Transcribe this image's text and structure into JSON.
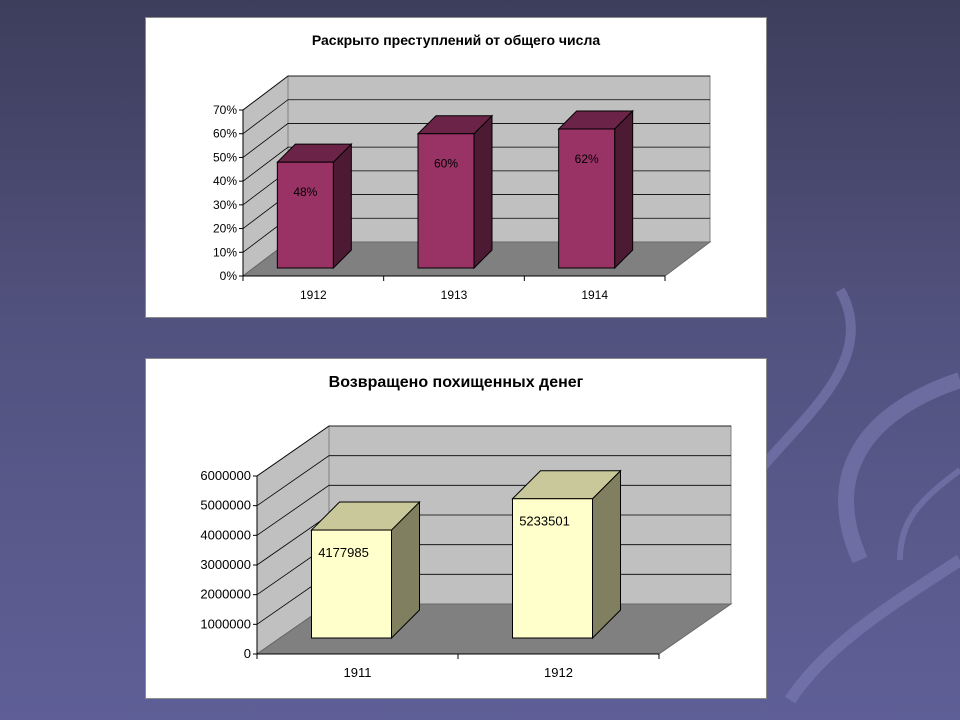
{
  "slide": {
    "background_color": "#5f5f97",
    "background_dark": "#3d3d5c"
  },
  "chart_data": [
    {
      "type": "bar",
      "title": "Раскрыто преступлений от общего числа",
      "categories": [
        "1912",
        "1913",
        "1914"
      ],
      "values": [
        48,
        60,
        62
      ],
      "value_labels": [
        "48%",
        "60%",
        "62%"
      ],
      "ylim": [
        0,
        70
      ],
      "y_ticks": [
        0,
        10,
        20,
        30,
        40,
        50,
        60,
        70
      ],
      "y_tick_labels": [
        "0%",
        "10%",
        "20%",
        "30%",
        "40%",
        "50%",
        "60%",
        "70%"
      ],
      "grid": true,
      "style": "3d",
      "colors": {
        "front": "#993366",
        "side": "#4d1a33",
        "top": "#6b2447"
      }
    },
    {
      "type": "bar",
      "title": "Возвращено похищенных денег",
      "categories": [
        "1911",
        "1912"
      ],
      "values": [
        4177985,
        5233501
      ],
      "value_labels": [
        "4177985",
        "5233501"
      ],
      "ylim": [
        0,
        6000000
      ],
      "y_ticks": [
        0,
        1000000,
        2000000,
        3000000,
        4000000,
        5000000,
        6000000
      ],
      "y_tick_labels": [
        "0",
        "1000000",
        "2000000",
        "3000000",
        "4000000",
        "5000000",
        "6000000"
      ],
      "grid": true,
      "style": "3d",
      "colors": {
        "front": "#ffffcc",
        "side": "#808060",
        "top": "#c8c89a"
      }
    }
  ]
}
